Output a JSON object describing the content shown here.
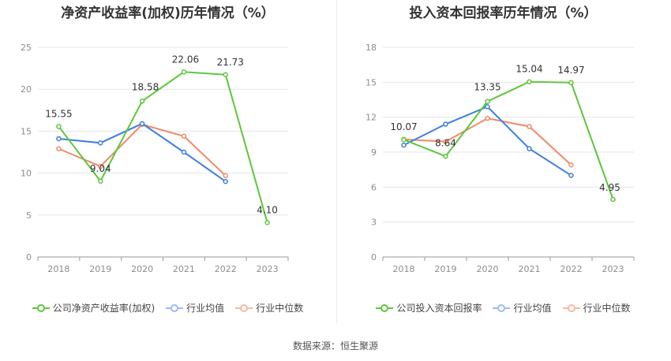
{
  "source_note": "数据来源：恒生聚源",
  "chart_data": [
    {
      "type": "line",
      "title": "净资产收益率(加权)历年情况（%）",
      "x": [
        "2018",
        "2019",
        "2020",
        "2021",
        "2022",
        "2023"
      ],
      "ylim": [
        0,
        25
      ],
      "yticks": [
        0,
        5,
        10,
        15,
        20,
        25
      ],
      "grid": true,
      "legend_position": "bottom",
      "series": [
        {
          "name": "公司净资产收益率(加权)",
          "color": "#5cc73a",
          "values": [
            15.55,
            9.04,
            18.58,
            22.06,
            21.73,
            4.1
          ],
          "labels": [
            "15.55",
            "9.04",
            "18.58",
            "22.06",
            "21.73",
            "4.10"
          ]
        },
        {
          "name": "行业均值",
          "color": "#3f7fe0",
          "values": [
            14.1,
            13.6,
            15.9,
            12.5,
            9.0,
            null
          ]
        },
        {
          "name": "行业中位数",
          "color": "#f08a66",
          "values": [
            12.9,
            10.8,
            15.8,
            14.4,
            9.7,
            null
          ]
        }
      ]
    },
    {
      "type": "line",
      "title": "投入资本回报率历年情况（%）",
      "x": [
        "2018",
        "2019",
        "2020",
        "2021",
        "2022",
        "2023"
      ],
      "ylim": [
        0,
        18
      ],
      "yticks": [
        0,
        3,
        6,
        9,
        12,
        15,
        18
      ],
      "grid": true,
      "legend_position": "bottom",
      "series": [
        {
          "name": "公司投入资本回报率",
          "color": "#5cc73a",
          "values": [
            10.07,
            8.64,
            13.35,
            15.04,
            14.97,
            4.95
          ],
          "labels": [
            "10.07",
            "8.64",
            "13.35",
            "15.04",
            "14.97",
            "4.95"
          ]
        },
        {
          "name": "行业均值",
          "color": "#3f7fe0",
          "values": [
            9.6,
            11.4,
            12.9,
            9.3,
            7.0,
            null
          ]
        },
        {
          "name": "行业中位数",
          "color": "#f08a66",
          "values": [
            10.1,
            9.9,
            11.9,
            11.2,
            7.9,
            null
          ]
        }
      ]
    }
  ]
}
